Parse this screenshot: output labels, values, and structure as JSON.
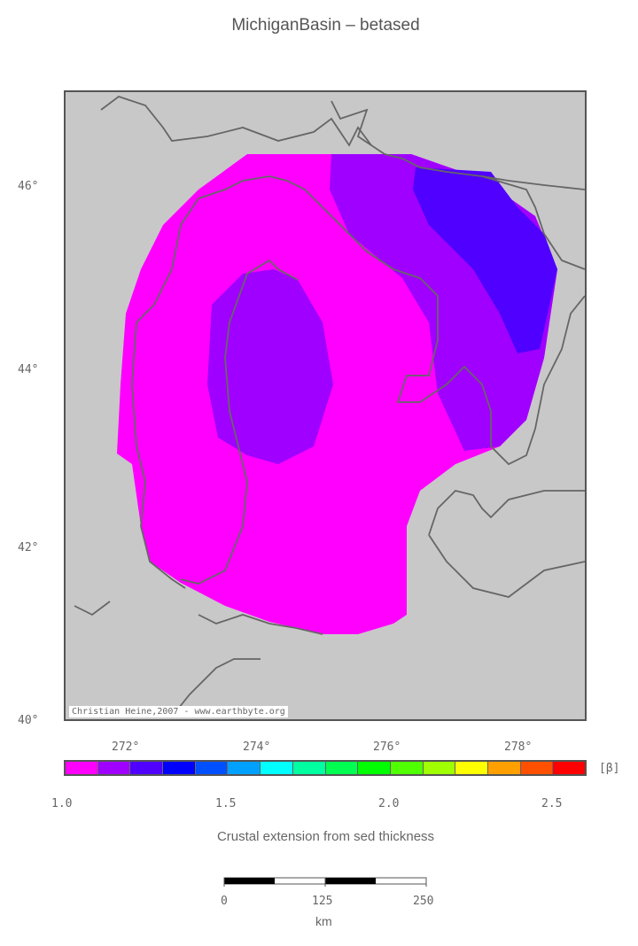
{
  "title": "MichiganBasin – betased",
  "map": {
    "lon_range": [
      271.0,
      279.0
    ],
    "lat_range": [
      40.0,
      47.0
    ],
    "lon_tick_labels": [
      "272°",
      "274°",
      "276°",
      "278°"
    ],
    "lat_tick_labels": [
      "40°",
      "42°",
      "44°",
      "46°"
    ],
    "background_color": "#c8c8c8",
    "coastline_color": "#666666",
    "credit": "Christian Heine,2007 - www.earthbyte.org"
  },
  "colorbar": {
    "unit": "[β]",
    "tick_labels": [
      "1.0",
      "1.5",
      "2.0",
      "2.5"
    ],
    "range": [
      1.0,
      2.6
    ],
    "colors": [
      "#ff00ff",
      "#a000ff",
      "#5000ff",
      "#0000ff",
      "#0050ff",
      "#00a0ff",
      "#00ffff",
      "#00ffa0",
      "#00ff50",
      "#00ff00",
      "#50ff00",
      "#a0ff00",
      "#ffff00",
      "#ffa000",
      "#ff5000",
      "#ff0000"
    ],
    "label": "Crustal extension from sed thickness"
  },
  "scalebar": {
    "tick_labels": [
      "0",
      "125",
      "250"
    ],
    "unit": "km"
  }
}
